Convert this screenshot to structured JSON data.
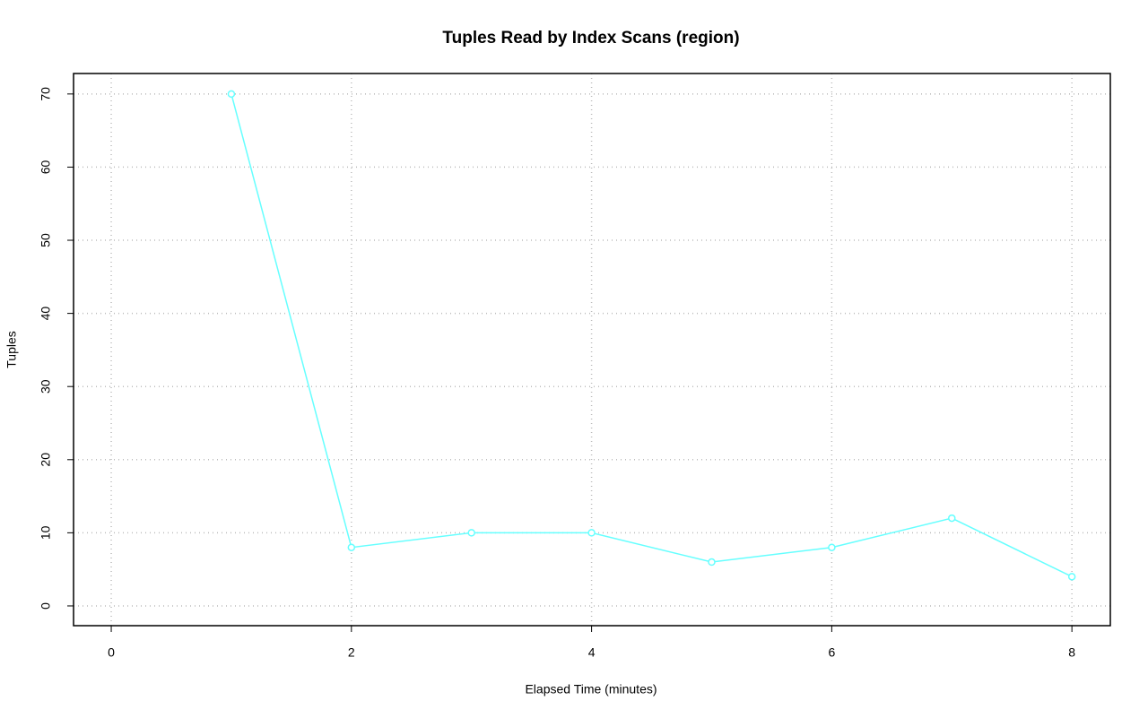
{
  "chart_data": {
    "type": "line",
    "title": "Tuples Read by Index Scans (region)",
    "x_label": "Elapsed Time (minutes)",
    "y_label": "Tuples",
    "x": [
      1,
      2,
      3,
      4,
      5,
      6,
      7,
      8
    ],
    "series": [
      {
        "name": "region",
        "color": "#66ffff",
        "values": [
          70,
          8,
          10,
          10,
          6,
          8,
          12,
          4
        ]
      }
    ],
    "xlim": [
      -0.314,
      8.32
    ],
    "ylim": [
      -2.7,
      72.8
    ],
    "xticks": [
      0,
      2,
      4,
      6,
      8
    ],
    "yticks": [
      0,
      10,
      20,
      30,
      40,
      50,
      60,
      70
    ],
    "grid": true
  }
}
